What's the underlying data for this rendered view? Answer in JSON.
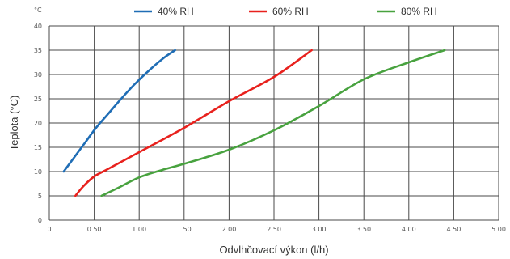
{
  "chart_data": {
    "type": "line",
    "unit_label": "°C",
    "xlabel": "Odvlhčovací výkon (l/h)",
    "ylabel": "Teplota (°C)",
    "xlim": [
      0,
      5
    ],
    "ylim": [
      0,
      40
    ],
    "x_ticks": [
      "0",
      "0.50",
      "1.00",
      "1.50",
      "2.00",
      "2.50",
      "3.00",
      "3.50",
      "4.00",
      "4.50",
      "5.00"
    ],
    "y_ticks": [
      "0",
      "5",
      "10",
      "15",
      "20",
      "25",
      "30",
      "35",
      "40"
    ],
    "grid": true,
    "legend_position": "top",
    "series": [
      {
        "name": "40% RH",
        "color": "#1f6db5",
        "points": [
          [
            0.16,
            10
          ],
          [
            0.28,
            13
          ],
          [
            0.4,
            16
          ],
          [
            0.52,
            19
          ],
          [
            0.66,
            22
          ],
          [
            0.8,
            25
          ],
          [
            0.95,
            28
          ],
          [
            1.12,
            31
          ],
          [
            1.28,
            33.5
          ],
          [
            1.4,
            35
          ]
        ]
      },
      {
        "name": "60% RH",
        "color": "#e8211d",
        "points": [
          [
            0.29,
            5
          ],
          [
            0.38,
            7
          ],
          [
            0.5,
            9
          ],
          [
            0.65,
            10.5
          ],
          [
            1.0,
            14
          ],
          [
            1.5,
            19
          ],
          [
            2.0,
            24.5
          ],
          [
            2.5,
            29.5
          ],
          [
            2.92,
            35
          ]
        ]
      },
      {
        "name": "80% RH",
        "color": "#48a23f",
        "points": [
          [
            0.58,
            5
          ],
          [
            0.75,
            6.5
          ],
          [
            1.0,
            8.8
          ],
          [
            1.25,
            10.3
          ],
          [
            1.5,
            11.6
          ],
          [
            2.0,
            14.5
          ],
          [
            2.5,
            18.5
          ],
          [
            3.0,
            23.5
          ],
          [
            3.5,
            29
          ],
          [
            4.0,
            32.5
          ],
          [
            4.4,
            35
          ]
        ]
      }
    ]
  }
}
